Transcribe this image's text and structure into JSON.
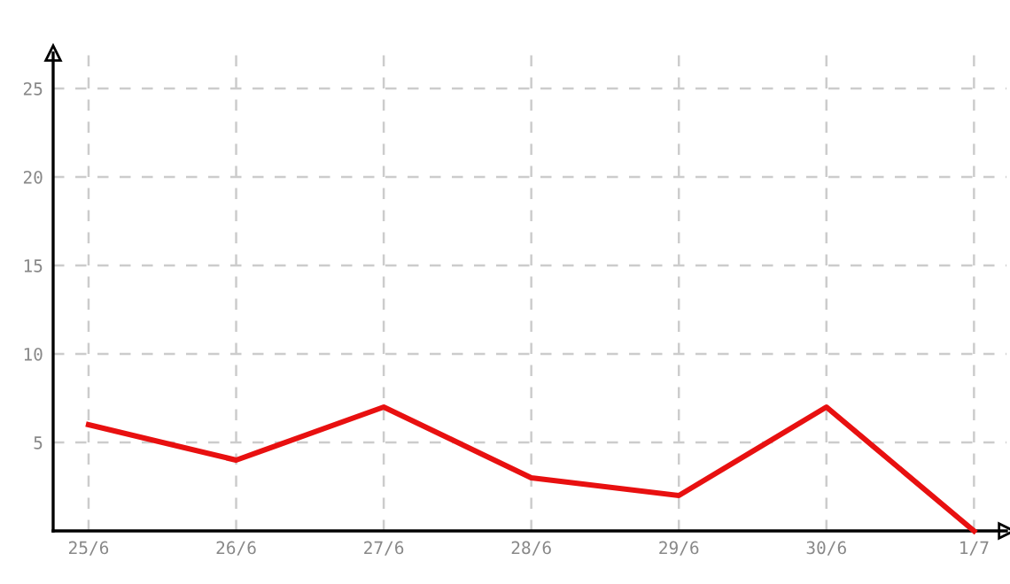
{
  "chart_data": {
    "type": "line",
    "categories": [
      "25/6",
      "26/6",
      "27/6",
      "28/6",
      "29/6",
      "30/6",
      "1/7"
    ],
    "series": [
      {
        "color": "#e81010",
        "values": [
          6,
          4,
          7,
          3,
          2,
          7,
          0
        ]
      }
    ],
    "ylim": [
      0,
      27
    ],
    "yticks": [
      5,
      10,
      15,
      20,
      25
    ],
    "grid": true,
    "marker": "none",
    "line_style": "solid"
  }
}
